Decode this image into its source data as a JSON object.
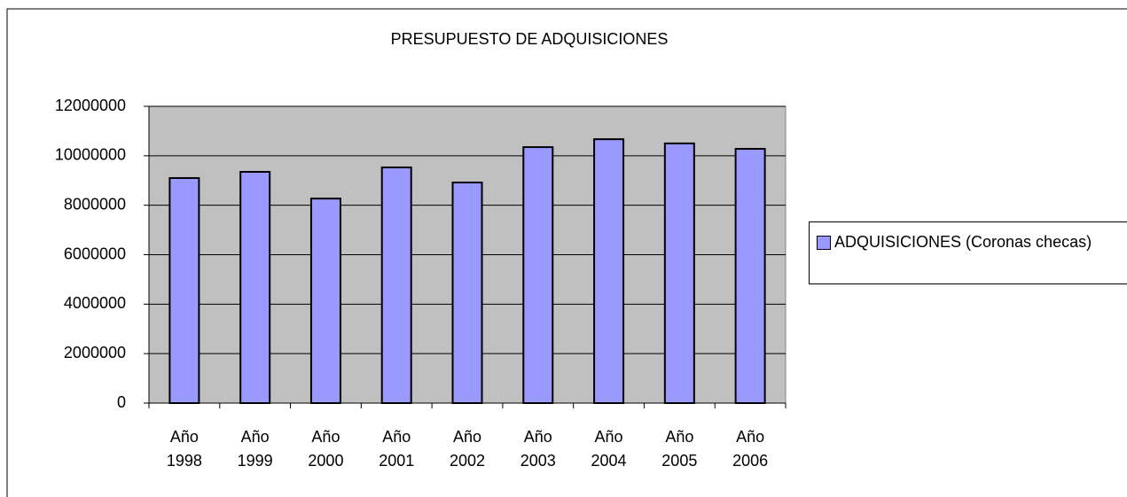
{
  "chart_data": {
    "type": "bar",
    "title": "PRESUPUESTO DE ADQUISICIONES",
    "categories": [
      "Año 1998",
      "Año 1999",
      "Año 2000",
      "Año 2001",
      "Año 2002",
      "Año 2003",
      "Año 2004",
      "Año 2005",
      "Año 2006"
    ],
    "series": [
      {
        "name": "ADQUISICIONES (Coronas checas)",
        "color": "#9999ff",
        "values": [
          9100000,
          9350000,
          8270000,
          9530000,
          8920000,
          10350000,
          10670000,
          10500000,
          10280000
        ]
      }
    ],
    "ylim": [
      0,
      12000000
    ],
    "yticks": [
      0,
      2000000,
      4000000,
      6000000,
      8000000,
      10000000,
      12000000
    ],
    "grid": true,
    "legend": "right"
  }
}
